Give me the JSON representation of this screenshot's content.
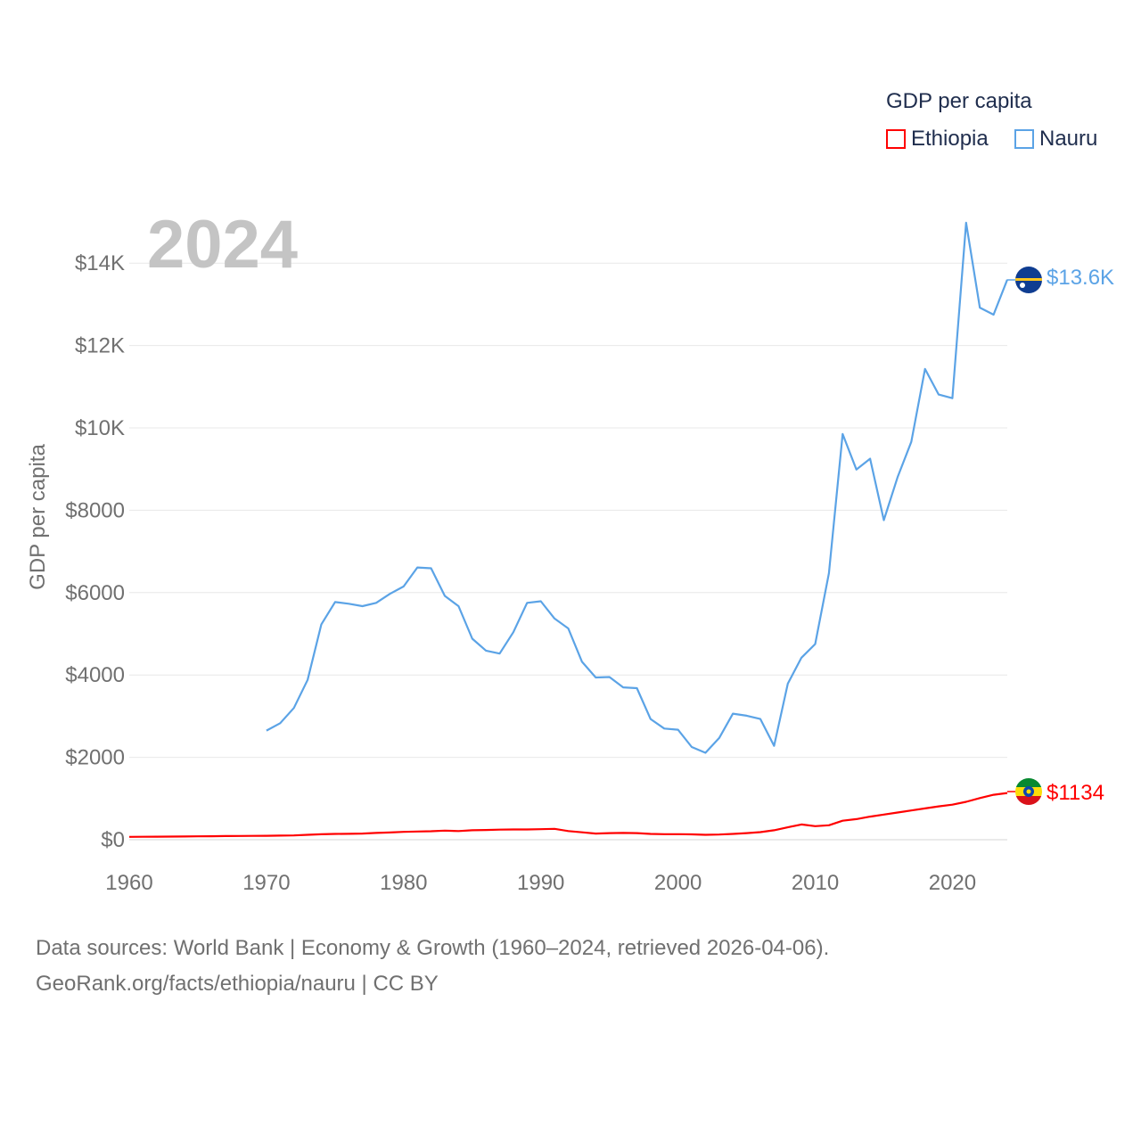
{
  "legend": {
    "title": "GDP per capita",
    "items": [
      {
        "label": "Ethiopia",
        "color": "#ff0000"
      },
      {
        "label": "Nauru",
        "color": "#5ba3e6"
      }
    ]
  },
  "year_label": "2024",
  "end_labels": {
    "nauru": "$13.6K",
    "ethiopia": "$1134"
  },
  "sources": {
    "line1": "Data sources: World Bank | Economy & Growth (1960–2024, retrieved 2026-04-06).",
    "line2": "GeoRank.org/facts/ethiopia/nauru | CC BY"
  },
  "chart_data": {
    "type": "line",
    "title": "GDP per capita",
    "xlabel": "",
    "ylabel": "GDP per capita",
    "xlim": [
      1960,
      2024
    ],
    "ylim": [
      0,
      15000
    ],
    "grid": true,
    "legend_position": "top-right",
    "x_ticks": [
      1960,
      1970,
      1980,
      1990,
      2000,
      2010,
      2020
    ],
    "x_tick_labels": [
      "1960",
      "1970",
      "1980",
      "1990",
      "2000",
      "2010",
      "2020"
    ],
    "y_ticks": [
      0,
      2000,
      4000,
      6000,
      8000,
      10000,
      12000,
      14000
    ],
    "y_tick_labels": [
      "$0",
      "$2000",
      "$4000",
      "$6000",
      "$8000",
      "$10K",
      "$12K",
      "$14K"
    ],
    "series": [
      {
        "name": "Nauru",
        "color": "#5ba3e6",
        "x": [
          1970,
          1971,
          1972,
          1973,
          1974,
          1975,
          1976,
          1977,
          1978,
          1979,
          1980,
          1981,
          1982,
          1983,
          1984,
          1985,
          1986,
          1987,
          1988,
          1989,
          1990,
          1991,
          1992,
          1993,
          1994,
          1995,
          1996,
          1997,
          1998,
          1999,
          2000,
          2001,
          2002,
          2003,
          2004,
          2005,
          2006,
          2007,
          2008,
          2009,
          2010,
          2011,
          2012,
          2013,
          2014,
          2015,
          2016,
          2017,
          2018,
          2019,
          2020,
          2021,
          2022,
          2023,
          2024
        ],
        "values": [
          2650,
          2830,
          3200,
          3880,
          5230,
          5770,
          5730,
          5670,
          5750,
          5970,
          6150,
          6610,
          6590,
          5920,
          5670,
          4880,
          4590,
          4520,
          5040,
          5750,
          5790,
          5370,
          5130,
          4320,
          3940,
          3950,
          3700,
          3680,
          2930,
          2700,
          2670,
          2250,
          2110,
          2470,
          3060,
          3010,
          2930,
          2280,
          3790,
          4420,
          4750,
          6470,
          9850,
          8990,
          9250,
          7760,
          8800,
          9660,
          11430,
          10810,
          10720,
          14980,
          12920,
          12750,
          13600
        ]
      },
      {
        "name": "Ethiopia",
        "color": "#ff0000",
        "x": [
          1960,
          1961,
          1962,
          1963,
          1964,
          1965,
          1966,
          1967,
          1968,
          1969,
          1970,
          1971,
          1972,
          1973,
          1974,
          1975,
          1976,
          1977,
          1978,
          1979,
          1980,
          1981,
          1982,
          1983,
          1984,
          1985,
          1986,
          1987,
          1988,
          1989,
          1990,
          1991,
          1992,
          1993,
          1994,
          1995,
          1996,
          1997,
          1998,
          1999,
          2000,
          2001,
          2002,
          2003,
          2004,
          2005,
          2006,
          2007,
          2008,
          2009,
          2010,
          2011,
          2012,
          2013,
          2014,
          2015,
          2016,
          2017,
          2018,
          2019,
          2020,
          2021,
          2022,
          2023,
          2024
        ],
        "values": [
          70,
          72,
          74,
          76,
          78,
          82,
          85,
          88,
          90,
          92,
          96,
          100,
          104,
          118,
          132,
          140,
          142,
          150,
          165,
          175,
          190,
          200,
          205,
          220,
          210,
          230,
          235,
          245,
          248,
          250,
          255,
          265,
          210,
          180,
          150,
          160,
          165,
          160,
          140,
          135,
          135,
          130,
          120,
          125,
          140,
          160,
          185,
          230,
          300,
          370,
          330,
          350,
          460,
          500,
          560,
          610,
          660,
          710,
          760,
          810,
          850,
          920,
          1010,
          1090,
          1134
        ]
      }
    ]
  }
}
